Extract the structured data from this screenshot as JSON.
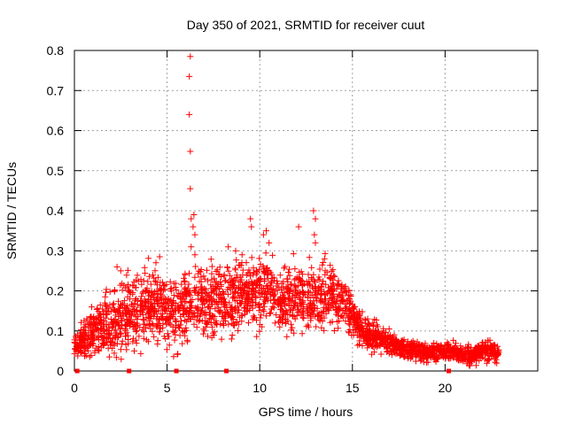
{
  "chart_data": {
    "type": "scatter",
    "title": "Day 350 of 2021, SRMTID for receiver cuut",
    "xlabel": "GPS time / hours",
    "ylabel": "SRMTID / TECUs",
    "xlim": [
      0,
      25
    ],
    "ylim": [
      0,
      0.8
    ],
    "xticks": [
      "0",
      "5",
      "10",
      "15",
      "20"
    ],
    "yticks": [
      "0",
      "0.1",
      "0.2",
      "0.3",
      "0.4",
      "0.5",
      "0.6",
      "0.7",
      "0.8"
    ],
    "grid": true,
    "marker": "+",
    "color": "#ff0000",
    "envelope": {
      "x": [
        0.0,
        0.5,
        1.0,
        1.5,
        2.0,
        2.5,
        3.0,
        3.5,
        4.0,
        4.5,
        5.0,
        5.5,
        6.0,
        6.5,
        7.0,
        7.5,
        8.0,
        8.5,
        9.0,
        9.5,
        10.0,
        10.5,
        11.0,
        11.5,
        12.0,
        12.5,
        13.0,
        13.5,
        14.0,
        14.5,
        15.0,
        15.5,
        16.0,
        16.5,
        17.0,
        17.5,
        18.0,
        18.5,
        19.0,
        19.5,
        20.0,
        20.5,
        21.0,
        21.5,
        22.0,
        22.5,
        22.9
      ],
      "center": [
        0.06,
        0.08,
        0.1,
        0.11,
        0.12,
        0.14,
        0.15,
        0.15,
        0.16,
        0.16,
        0.15,
        0.14,
        0.16,
        0.17,
        0.18,
        0.18,
        0.18,
        0.18,
        0.19,
        0.19,
        0.2,
        0.21,
        0.17,
        0.18,
        0.18,
        0.17,
        0.18,
        0.2,
        0.19,
        0.16,
        0.14,
        0.1,
        0.09,
        0.08,
        0.07,
        0.06,
        0.05,
        0.05,
        0.045,
        0.045,
        0.05,
        0.05,
        0.04,
        0.04,
        0.05,
        0.05,
        0.045
      ],
      "spread": [
        0.03,
        0.04,
        0.05,
        0.06,
        0.07,
        0.08,
        0.08,
        0.08,
        0.08,
        0.08,
        0.08,
        0.08,
        0.08,
        0.08,
        0.08,
        0.08,
        0.08,
        0.08,
        0.08,
        0.08,
        0.08,
        0.08,
        0.08,
        0.08,
        0.08,
        0.08,
        0.08,
        0.08,
        0.07,
        0.06,
        0.05,
        0.04,
        0.035,
        0.03,
        0.025,
        0.02,
        0.02,
        0.02,
        0.02,
        0.02,
        0.02,
        0.02,
        0.02,
        0.02,
        0.025,
        0.025,
        0.02
      ]
    },
    "outliers": [
      {
        "x": 6.25,
        "y": 0.785
      },
      {
        "x": 6.2,
        "y": 0.735
      },
      {
        "x": 6.2,
        "y": 0.64
      },
      {
        "x": 6.25,
        "y": 0.548
      },
      {
        "x": 6.25,
        "y": 0.455
      },
      {
        "x": 6.3,
        "y": 0.38
      },
      {
        "x": 6.45,
        "y": 0.39
      },
      {
        "x": 6.4,
        "y": 0.36
      },
      {
        "x": 6.5,
        "y": 0.34
      },
      {
        "x": 6.3,
        "y": 0.31
      },
      {
        "x": 6.5,
        "y": 0.29
      },
      {
        "x": 9.5,
        "y": 0.38
      },
      {
        "x": 9.55,
        "y": 0.36
      },
      {
        "x": 10.35,
        "y": 0.35
      },
      {
        "x": 10.2,
        "y": 0.34
      },
      {
        "x": 10.5,
        "y": 0.32
      },
      {
        "x": 12.9,
        "y": 0.4
      },
      {
        "x": 13.0,
        "y": 0.38
      },
      {
        "x": 12.95,
        "y": 0.34
      },
      {
        "x": 13.0,
        "y": 0.32
      },
      {
        "x": 12.1,
        "y": 0.36
      },
      {
        "x": 8.3,
        "y": 0.31
      },
      {
        "x": 8.7,
        "y": 0.3
      },
      {
        "x": 4.6,
        "y": 0.285
      },
      {
        "x": 4.4,
        "y": 0.27
      },
      {
        "x": 2.3,
        "y": 0.26
      },
      {
        "x": 2.5,
        "y": 0.25
      }
    ],
    "baseline_markers": [
      0.15,
      2.95,
      5.5,
      8.2,
      20.2
    ]
  }
}
